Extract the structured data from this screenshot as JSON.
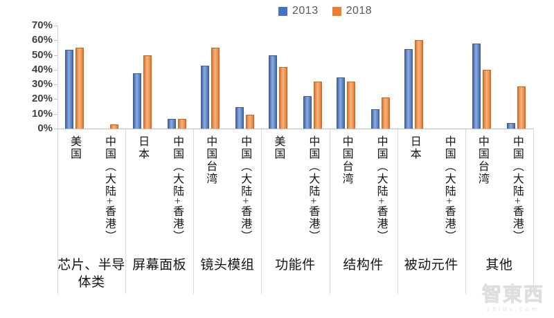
{
  "page": {
    "background": "#ffffff"
  },
  "legend": {
    "items": [
      {
        "label": "2013",
        "color": "#4472C4"
      },
      {
        "label": "2018",
        "color": "#ED7D31"
      }
    ]
  },
  "watermark": {
    "line1": "智東西",
    "line2": "zhidx.com"
  },
  "chart_data": {
    "type": "bar",
    "title": "",
    "xlabel": "",
    "ylabel": "",
    "ylim": [
      0,
      70
    ],
    "ytick_step": 10,
    "ytick_labels": [
      "0%",
      "10%",
      "20%",
      "30%",
      "40%",
      "50%",
      "60%",
      "70%"
    ],
    "grid": false,
    "legend_position": "top-center",
    "group_categories": [
      "芯片、半导体类",
      "屏幕面板",
      "镜头模组",
      "功能件",
      "结构件",
      "被动元件",
      "其他"
    ],
    "subcategories": [
      [
        "美国",
        "中国（大陆+香港）"
      ],
      [
        "日本",
        "中国（大陆+香港）"
      ],
      [
        "中国台湾",
        "中国（大陆+香港）"
      ],
      [
        "美国",
        "中国（大陆+香港）"
      ],
      [
        "中国台湾",
        "中国（大陆+香港）"
      ],
      [
        "日本",
        "中国（大陆+香港）"
      ],
      [
        "中国台湾",
        "中国（大陆+香港）"
      ]
    ],
    "series": [
      {
        "name": "2013",
        "color": "#4472C4",
        "values": [
          [
            53.5,
            0
          ],
          [
            37.5,
            6.5
          ],
          [
            43,
            14.5
          ],
          [
            50,
            22
          ],
          [
            35,
            13
          ],
          [
            54,
            0
          ],
          [
            58,
            4
          ]
        ]
      },
      {
        "name": "2018",
        "color": "#ED7D31",
        "values": [
          [
            55,
            3
          ],
          [
            50,
            6.5
          ],
          [
            55,
            9.5
          ],
          [
            42,
            32
          ],
          [
            32,
            21
          ],
          [
            60,
            0
          ],
          [
            40,
            28.5
          ]
        ]
      }
    ]
  }
}
